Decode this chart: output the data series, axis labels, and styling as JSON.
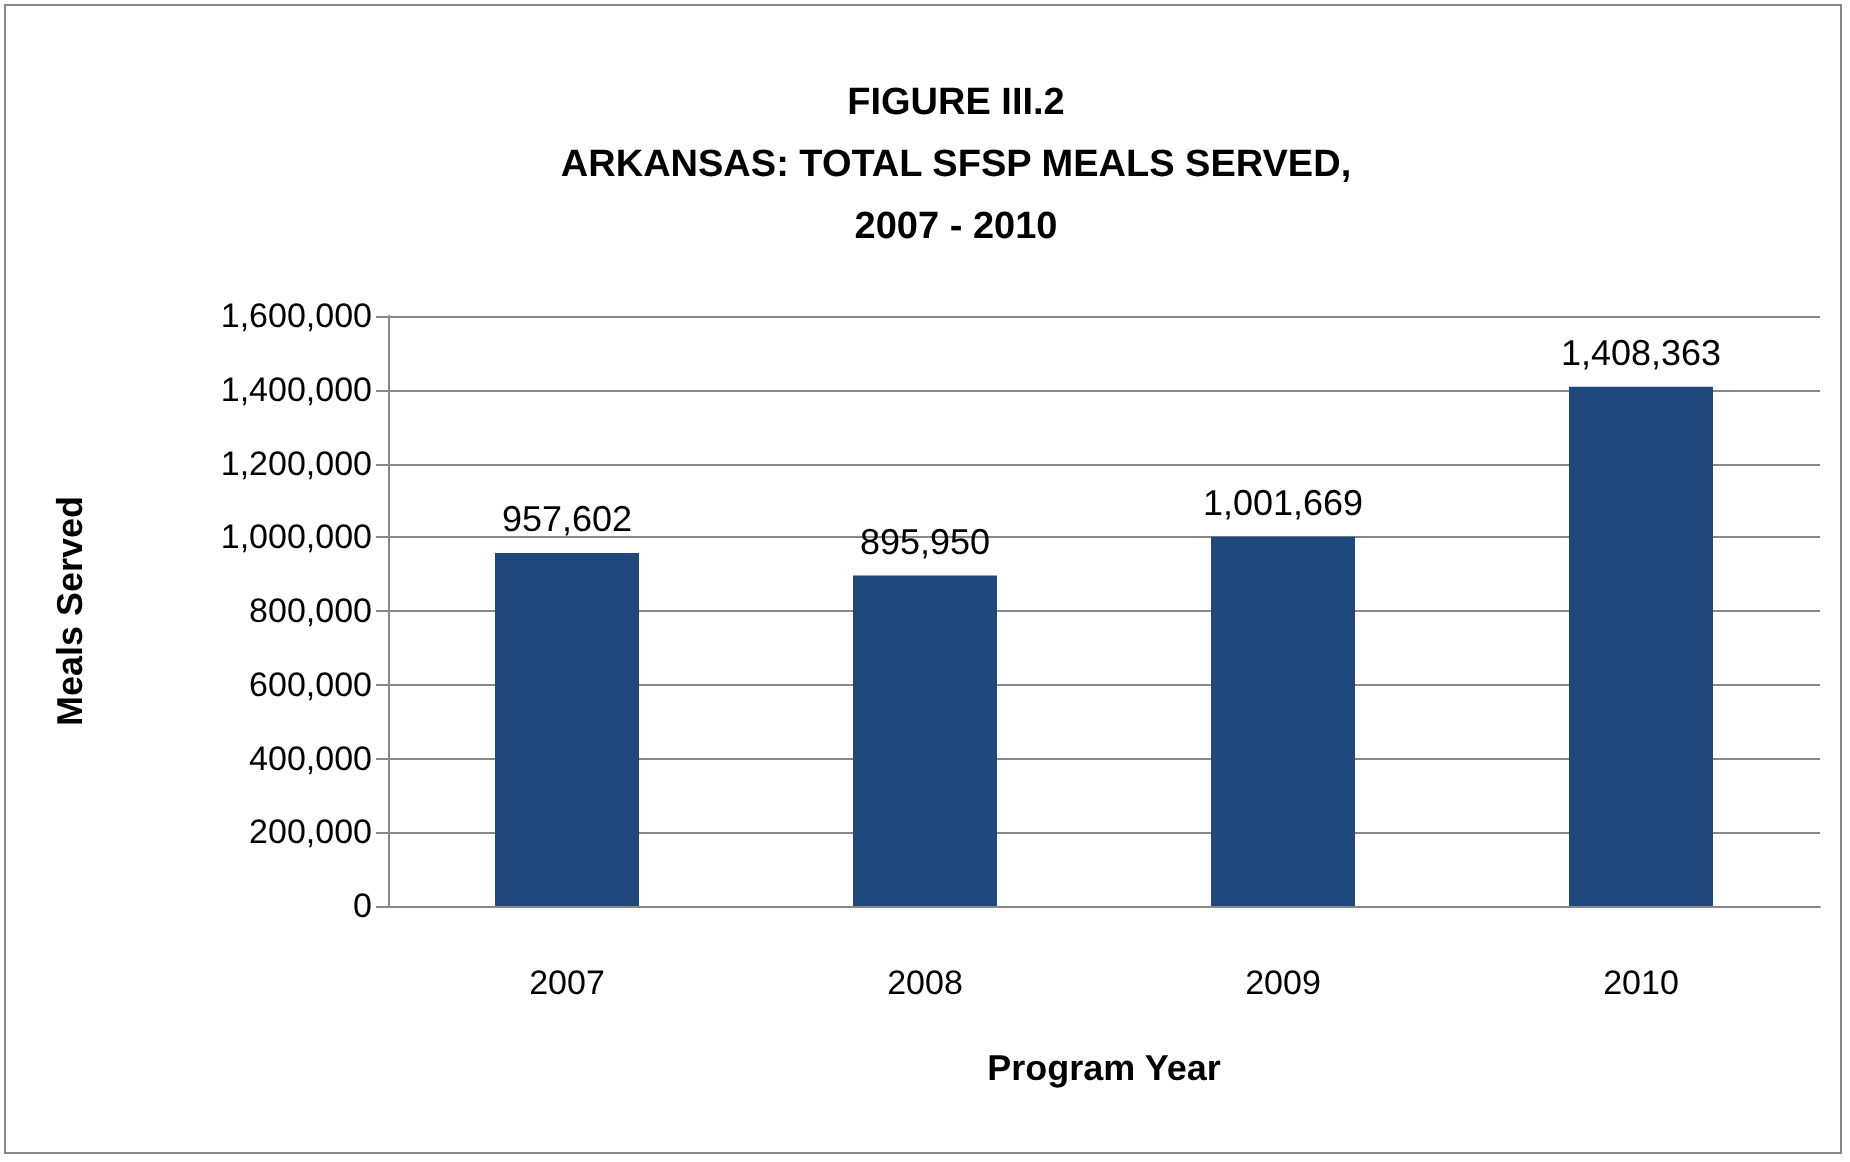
{
  "chart_data": {
    "type": "bar",
    "title": "FIGURE III.2\nARKANSAS: TOTAL SFSP MEALS SERVED,\n2007 - 2010",
    "xlabel": "Program Year",
    "ylabel": "Meals Served",
    "categories": [
      "2007",
      "2008",
      "2009",
      "2010"
    ],
    "values": [
      957602,
      895950,
      1001669,
      1408363
    ],
    "color": "#1f497d",
    "value_labels": [
      "957,602",
      "895,950",
      "1,001,669",
      "1,408,363"
    ],
    "ylim": [
      0,
      1600000
    ],
    "yticks": [
      0,
      {
        "value": 200000,
        "label": "200,000"
      },
      {
        "value": 400000,
        "label": "400,000"
      },
      {
        "value": 600000,
        "label": "600,000"
      },
      {
        "value": 800000,
        "label": "800,000"
      },
      {
        "value": 1000000,
        "label": "1,000,000"
      },
      {
        "value": 1200000,
        "label": "1,200,000"
      },
      {
        "value": 1400000,
        "label": "1,400,000"
      },
      {
        "value": 1600000,
        "label": "1,600,000"
      }
    ],
    "grid": "y"
  }
}
